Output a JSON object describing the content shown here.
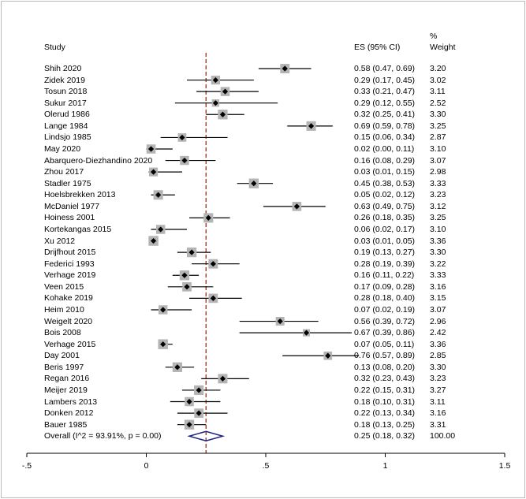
{
  "header": {
    "study": "Study",
    "es": "ES (95% CI)",
    "pct": "%",
    "weight": "Weight"
  },
  "chart_data": {
    "type": "forest",
    "title": "",
    "xlim": [
      -0.5,
      1.5
    ],
    "xticks": [
      -0.5,
      0,
      0.5,
      1,
      1.5
    ],
    "xtick_labels": [
      "-.5",
      "0",
      ".5",
      "1",
      "1.5"
    ],
    "null_line": 0,
    "overall_line": 0.25,
    "studies": [
      {
        "name": "Shih 2020",
        "es": 0.58,
        "lo": 0.47,
        "hi": 0.69,
        "ci_text": "0.58 (0.47, 0.69)",
        "weight": "3.20"
      },
      {
        "name": "Zidek 2019",
        "es": 0.29,
        "lo": 0.17,
        "hi": 0.45,
        "ci_text": "0.29 (0.17, 0.45)",
        "weight": "3.02"
      },
      {
        "name": "Tosun 2018",
        "es": 0.33,
        "lo": 0.21,
        "hi": 0.47,
        "ci_text": "0.33 (0.21, 0.47)",
        "weight": "3.11"
      },
      {
        "name": "Sukur 2017",
        "es": 0.29,
        "lo": 0.12,
        "hi": 0.55,
        "ci_text": "0.29 (0.12, 0.55)",
        "weight": "2.52"
      },
      {
        "name": "Olerud 1986",
        "es": 0.32,
        "lo": 0.25,
        "hi": 0.41,
        "ci_text": "0.32 (0.25, 0.41)",
        "weight": "3.30"
      },
      {
        "name": "Lange 1984",
        "es": 0.69,
        "lo": 0.59,
        "hi": 0.78,
        "ci_text": "0.69 (0.59, 0.78)",
        "weight": "3.25"
      },
      {
        "name": "Lindsjo 1985",
        "es": 0.15,
        "lo": 0.06,
        "hi": 0.34,
        "ci_text": "0.15 (0.06, 0.34)",
        "weight": "2.87"
      },
      {
        "name": "May 2020",
        "es": 0.02,
        "lo": 0.0,
        "hi": 0.11,
        "ci_text": "0.02 (0.00, 0.11)",
        "weight": "3.10"
      },
      {
        "name": "Abarquero-Diezhandino 2020",
        "es": 0.16,
        "lo": 0.08,
        "hi": 0.29,
        "ci_text": "0.16 (0.08, 0.29)",
        "weight": "3.07"
      },
      {
        "name": "Zhou 2017",
        "es": 0.03,
        "lo": 0.01,
        "hi": 0.15,
        "ci_text": "0.03 (0.01, 0.15)",
        "weight": "2.98"
      },
      {
        "name": "Stadler 1975",
        "es": 0.45,
        "lo": 0.38,
        "hi": 0.53,
        "ci_text": "0.45 (0.38, 0.53)",
        "weight": "3.33"
      },
      {
        "name": "Hoelsbrekken 2013",
        "es": 0.05,
        "lo": 0.02,
        "hi": 0.12,
        "ci_text": "0.05 (0.02, 0.12)",
        "weight": "3.23"
      },
      {
        "name": "McDaniel 1977",
        "es": 0.63,
        "lo": 0.49,
        "hi": 0.75,
        "ci_text": "0.63 (0.49, 0.75)",
        "weight": "3.12"
      },
      {
        "name": "Hoiness 2001",
        "es": 0.26,
        "lo": 0.18,
        "hi": 0.35,
        "ci_text": "0.26 (0.18, 0.35)",
        "weight": "3.25"
      },
      {
        "name": "Kortekangas 2015",
        "es": 0.06,
        "lo": 0.02,
        "hi": 0.17,
        "ci_text": "0.06 (0.02, 0.17)",
        "weight": "3.10"
      },
      {
        "name": "Xu 2012",
        "es": 0.03,
        "lo": 0.01,
        "hi": 0.05,
        "ci_text": "0.03 (0.01, 0.05)",
        "weight": "3.36"
      },
      {
        "name": "Drijfhout 2015",
        "es": 0.19,
        "lo": 0.13,
        "hi": 0.27,
        "ci_text": "0.19 (0.13, 0.27)",
        "weight": "3.30"
      },
      {
        "name": "Federici 1993",
        "es": 0.28,
        "lo": 0.19,
        "hi": 0.39,
        "ci_text": "0.28 (0.19, 0.39)",
        "weight": "3.22"
      },
      {
        "name": "Verhage 2019",
        "es": 0.16,
        "lo": 0.11,
        "hi": 0.22,
        "ci_text": "0.16 (0.11, 0.22)",
        "weight": "3.33"
      },
      {
        "name": "Veen 2015",
        "es": 0.17,
        "lo": 0.09,
        "hi": 0.28,
        "ci_text": "0.17 (0.09, 0.28)",
        "weight": "3.16"
      },
      {
        "name": "Kohake 2019",
        "es": 0.28,
        "lo": 0.18,
        "hi": 0.4,
        "ci_text": "0.28 (0.18, 0.40)",
        "weight": "3.15"
      },
      {
        "name": "Heim 2010",
        "es": 0.07,
        "lo": 0.02,
        "hi": 0.19,
        "ci_text": "0.07 (0.02, 0.19)",
        "weight": "3.07"
      },
      {
        "name": "Weigelt 2020",
        "es": 0.56,
        "lo": 0.39,
        "hi": 0.72,
        "ci_text": "0.56 (0.39, 0.72)",
        "weight": "2.96"
      },
      {
        "name": "Bois 2008",
        "es": 0.67,
        "lo": 0.39,
        "hi": 0.86,
        "ci_text": "0.67 (0.39, 0.86)",
        "weight": "2.42"
      },
      {
        "name": "Verhage 2015",
        "es": 0.07,
        "lo": 0.05,
        "hi": 0.11,
        "ci_text": "0.07 (0.05, 0.11)",
        "weight": "3.36"
      },
      {
        "name": "Day 2001",
        "es": 0.76,
        "lo": 0.57,
        "hi": 0.89,
        "ci_text": "0.76 (0.57, 0.89)",
        "weight": "2.85"
      },
      {
        "name": "Beris 1997",
        "es": 0.13,
        "lo": 0.08,
        "hi": 0.2,
        "ci_text": "0.13 (0.08, 0.20)",
        "weight": "3.30"
      },
      {
        "name": "Regan 2016",
        "es": 0.32,
        "lo": 0.23,
        "hi": 0.43,
        "ci_text": "0.32 (0.23, 0.43)",
        "weight": "3.23"
      },
      {
        "name": "Meijer 2019",
        "es": 0.22,
        "lo": 0.15,
        "hi": 0.31,
        "ci_text": "0.22 (0.15, 0.31)",
        "weight": "3.27"
      },
      {
        "name": "Lambers 2013",
        "es": 0.18,
        "lo": 0.1,
        "hi": 0.31,
        "ci_text": "0.18 (0.10, 0.31)",
        "weight": "3.11"
      },
      {
        "name": "Donken 2012",
        "es": 0.22,
        "lo": 0.13,
        "hi": 0.34,
        "ci_text": "0.22 (0.13, 0.34)",
        "weight": "3.16"
      },
      {
        "name": "Bauer 1985",
        "es": 0.18,
        "lo": 0.13,
        "hi": 0.25,
        "ci_text": "0.18 (0.13, 0.25)",
        "weight": "3.31"
      }
    ],
    "overall": {
      "label": "Overall  (I^2 = 93.91%, p = 0.00)",
      "es": 0.25,
      "lo": 0.18,
      "hi": 0.32,
      "ci_text": "0.25 (0.18, 0.32)",
      "weight": "100.00"
    },
    "colors": {
      "box": "#b4b4b4",
      "point": "#000000",
      "ci": "#000000",
      "diamond": "#1a237e",
      "overall_line": "#9b2c1e",
      "frame": "#bbbbbb"
    }
  }
}
